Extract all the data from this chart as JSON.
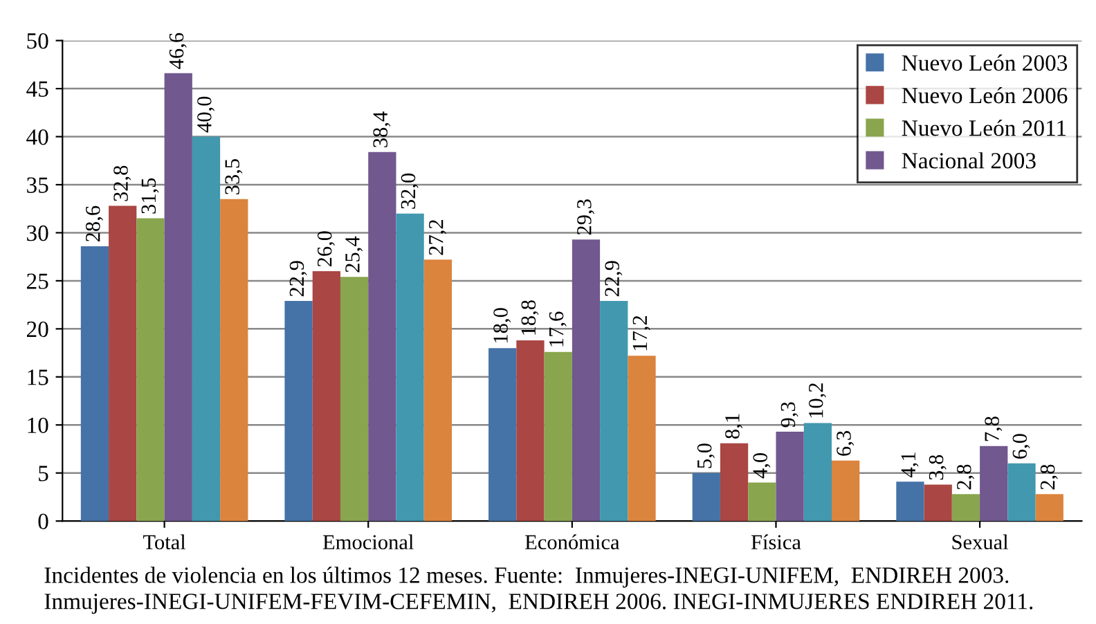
{
  "chart_data": {
    "type": "bar",
    "categories": [
      "Total",
      "Emocional",
      "Económica",
      "Física",
      "Sexual"
    ],
    "series": [
      {
        "name": "Nuevo León 2003",
        "color": "#4572a7",
        "values": [
          28.6,
          22.9,
          18.0,
          5.0,
          4.1
        ],
        "value_labels": [
          "28,6",
          "22,9",
          "18,0",
          "5,0",
          "4,1"
        ]
      },
      {
        "name": "Nuevo León 2006",
        "color": "#aa4643",
        "values": [
          32.8,
          26.0,
          18.8,
          8.1,
          3.8
        ],
        "value_labels": [
          "32,8",
          "26,0",
          "18,8",
          "8,1",
          "3,8"
        ]
      },
      {
        "name": "Nuevo León 2011",
        "color": "#89a54e",
        "values": [
          31.5,
          25.4,
          17.6,
          4.0,
          2.8
        ],
        "value_labels": [
          "31,5",
          "25,4",
          "17,6",
          "4,0",
          "2,8"
        ]
      },
      {
        "name": "Nacional 2003",
        "color": "#71588f",
        "values": [
          46.6,
          38.4,
          29.3,
          9.3,
          7.8
        ],
        "value_labels": [
          "46,6",
          "38,4",
          "29,3",
          "9,3",
          "7,8"
        ]
      },
      {
        "color": "#4198af",
        "values": [
          40.0,
          32.0,
          22.9,
          10.2,
          6.0
        ],
        "value_labels": [
          "40,0",
          "32,0",
          "22,9",
          "10,2",
          "6,0"
        ]
      },
      {
        "color": "#db843d",
        "values": [
          33.5,
          27.2,
          17.2,
          6.3,
          2.8
        ],
        "value_labels": [
          "33,5",
          "27,2",
          "17,2",
          "6,3",
          "2,8"
        ]
      }
    ],
    "ylim": [
      0,
      50
    ],
    "yticks": [
      0,
      5,
      10,
      15,
      20,
      25,
      30,
      35,
      40,
      45,
      50
    ],
    "grid": "y",
    "legend": "top right",
    "annotations": [
      "Incidentes de violencia en los últimos 12 meses. Fuente:  Inmujeres-INEGI-UNIFEM,  ENDIREH 2003.",
      "Inmujeres-INEGI-UNIFEM-FEVIM-CEFEMIN,  ENDIREH 2006. INEGI-INMUJERES ENDIREH 2011."
    ]
  }
}
